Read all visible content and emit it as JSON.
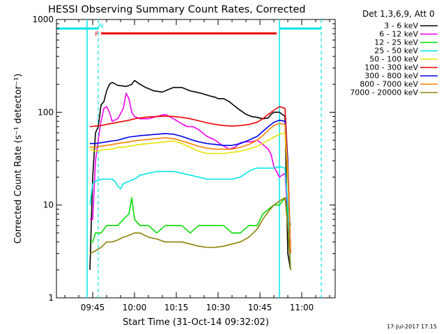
{
  "chart_data": {
    "type": "line",
    "title": "HESSI Observing Summary Count Rates, Corrected",
    "xlabel": "Start Time (31-Oct-14 09:32:02)",
    "ylabel": "Corrected Count Rate (s⁻¹ detector⁻¹)",
    "timestamp": "17-Jul-2017 17:15",
    "y_scale": "log",
    "ylim": [
      1,
      1000
    ],
    "y_ticks": [
      {
        "value": 1,
        "label": "1"
      },
      {
        "value": 10,
        "label": "10"
      },
      {
        "value": 100,
        "label": "100"
      },
      {
        "value": 1000,
        "label": "1000"
      }
    ],
    "xlim_minutes": [
      0,
      100
    ],
    "x_ticks": [
      {
        "minute": 13,
        "label": "09:45"
      },
      {
        "minute": 28,
        "label": "10:00"
      },
      {
        "minute": 43,
        "label": "10:15"
      },
      {
        "minute": 58,
        "label": "10:30"
      },
      {
        "minute": 73,
        "label": "10:45"
      },
      {
        "minute": 88,
        "label": "11:00"
      }
    ],
    "legend": {
      "header": "Det 1,3,6,9, Att 0",
      "placement": "right"
    },
    "flag_bars": [
      {
        "label": "N",
        "color": "#00e5e5",
        "segments": [
          [
            0,
            15
          ],
          [
            80,
            95
          ]
        ]
      },
      {
        "label": "F",
        "color": "#ee0000",
        "segments": [
          [
            16,
            79
          ]
        ]
      }
    ],
    "night_lines": {
      "color": "#00e5e5",
      "solid": [
        11,
        80
      ],
      "dashed": [
        15,
        95
      ]
    },
    "series": [
      {
        "name": "3 - 6 keV",
        "color": "#000000",
        "points": [
          [
            12,
            2
          ],
          [
            13,
            20
          ],
          [
            14,
            60
          ],
          [
            15,
            70
          ],
          [
            16,
            120
          ],
          [
            17,
            130
          ],
          [
            18,
            170
          ],
          [
            19,
            200
          ],
          [
            20,
            210
          ],
          [
            22,
            195
          ],
          [
            25,
            190
          ],
          [
            27,
            200
          ],
          [
            28,
            220
          ],
          [
            30,
            200
          ],
          [
            32,
            185
          ],
          [
            35,
            170
          ],
          [
            38,
            165
          ],
          [
            40,
            175
          ],
          [
            42,
            185
          ],
          [
            45,
            185
          ],
          [
            48,
            170
          ],
          [
            50,
            165
          ],
          [
            52,
            160
          ],
          [
            55,
            150
          ],
          [
            57,
            145
          ],
          [
            58,
            140
          ],
          [
            60,
            140
          ],
          [
            62,
            130
          ],
          [
            65,
            110
          ],
          [
            68,
            95
          ],
          [
            70,
            90
          ],
          [
            72,
            88
          ],
          [
            74,
            85
          ],
          [
            76,
            87
          ],
          [
            77,
            95
          ],
          [
            78,
            100
          ],
          [
            80,
            100
          ],
          [
            82,
            90
          ],
          [
            83,
            3
          ],
          [
            84,
            2
          ]
        ]
      },
      {
        "name": "6 - 12 keV",
        "color": "#ee00ee",
        "points": [
          [
            12,
            7
          ],
          [
            13,
            7
          ],
          [
            14,
            30
          ],
          [
            15,
            50
          ],
          [
            16,
            80
          ],
          [
            17,
            110
          ],
          [
            18,
            115
          ],
          [
            19,
            100
          ],
          [
            20,
            80
          ],
          [
            22,
            85
          ],
          [
            24,
            110
          ],
          [
            25,
            160
          ],
          [
            26,
            140
          ],
          [
            27,
            100
          ],
          [
            28,
            90
          ],
          [
            30,
            85
          ],
          [
            33,
            85
          ],
          [
            36,
            90
          ],
          [
            39,
            95
          ],
          [
            42,
            85
          ],
          [
            45,
            75
          ],
          [
            47,
            70
          ],
          [
            49,
            70
          ],
          [
            51,
            65
          ],
          [
            54,
            55
          ],
          [
            57,
            50
          ],
          [
            59,
            45
          ],
          [
            62,
            40
          ],
          [
            64,
            42
          ],
          [
            66,
            47
          ],
          [
            68,
            48
          ],
          [
            70,
            48
          ],
          [
            72,
            50
          ],
          [
            74,
            45
          ],
          [
            76,
            40
          ],
          [
            77,
            35
          ],
          [
            78,
            26
          ],
          [
            80,
            20
          ],
          [
            82,
            22
          ],
          [
            83,
            8
          ],
          [
            84,
            6
          ]
        ]
      },
      {
        "name": "12 - 25 keV",
        "color": "#00dd00",
        "points": [
          [
            12,
            4
          ],
          [
            13,
            4
          ],
          [
            14,
            5
          ],
          [
            16,
            5
          ],
          [
            18,
            6
          ],
          [
            20,
            6
          ],
          [
            22,
            6
          ],
          [
            24,
            7
          ],
          [
            26,
            8
          ],
          [
            27,
            12
          ],
          [
            28,
            7
          ],
          [
            30,
            6
          ],
          [
            33,
            6
          ],
          [
            36,
            5
          ],
          [
            39,
            6
          ],
          [
            42,
            6
          ],
          [
            45,
            6
          ],
          [
            48,
            5
          ],
          [
            51,
            6
          ],
          [
            54,
            6
          ],
          [
            57,
            6
          ],
          [
            60,
            6
          ],
          [
            63,
            5
          ],
          [
            66,
            5
          ],
          [
            69,
            6
          ],
          [
            72,
            6
          ],
          [
            74,
            8
          ],
          [
            76,
            9
          ],
          [
            78,
            10
          ],
          [
            80,
            10
          ],
          [
            82,
            12
          ],
          [
            83,
            8
          ],
          [
            84,
            6
          ]
        ]
      },
      {
        "name": "25 - 50 keV",
        "color": "#00e5e5",
        "points": [
          [
            12,
            10
          ],
          [
            13,
            17
          ],
          [
            14,
            18
          ],
          [
            16,
            19
          ],
          [
            18,
            19
          ],
          [
            20,
            19
          ],
          [
            21,
            18
          ],
          [
            22,
            16
          ],
          [
            23,
            15
          ],
          [
            24,
            17
          ],
          [
            26,
            18
          ],
          [
            28,
            19
          ],
          [
            30,
            21
          ],
          [
            33,
            22
          ],
          [
            36,
            23
          ],
          [
            39,
            23
          ],
          [
            42,
            23
          ],
          [
            45,
            22
          ],
          [
            48,
            21
          ],
          [
            51,
            20
          ],
          [
            54,
            19
          ],
          [
            57,
            19
          ],
          [
            60,
            19
          ],
          [
            63,
            19
          ],
          [
            66,
            20
          ],
          [
            68,
            22
          ],
          [
            70,
            24
          ],
          [
            72,
            25
          ],
          [
            74,
            25
          ],
          [
            76,
            25
          ],
          [
            78,
            25
          ],
          [
            80,
            26
          ],
          [
            82,
            25
          ],
          [
            83,
            10
          ],
          [
            84,
            2
          ]
        ]
      },
      {
        "name": "50 - 100 keV",
        "color": "#e5e500",
        "points": [
          [
            12,
            40
          ],
          [
            14,
            38
          ],
          [
            16,
            39
          ],
          [
            18,
            40
          ],
          [
            20,
            40
          ],
          [
            22,
            42
          ],
          [
            24,
            42
          ],
          [
            26,
            43
          ],
          [
            28,
            44
          ],
          [
            30,
            45
          ],
          [
            33,
            46
          ],
          [
            36,
            47
          ],
          [
            39,
            48
          ],
          [
            42,
            49
          ],
          [
            45,
            46
          ],
          [
            48,
            42
          ],
          [
            51,
            38
          ],
          [
            54,
            36
          ],
          [
            57,
            36
          ],
          [
            60,
            36
          ],
          [
            63,
            37
          ],
          [
            66,
            38
          ],
          [
            69,
            40
          ],
          [
            72,
            43
          ],
          [
            74,
            46
          ],
          [
            76,
            50
          ],
          [
            78,
            54
          ],
          [
            80,
            58
          ],
          [
            82,
            60
          ],
          [
            83,
            20
          ],
          [
            84,
            3
          ]
        ]
      },
      {
        "name": "100 - 300 keV",
        "color": "#ee0000",
        "points": [
          [
            12,
            70
          ],
          [
            14,
            71
          ],
          [
            16,
            72
          ],
          [
            18,
            74
          ],
          [
            20,
            76
          ],
          [
            22,
            78
          ],
          [
            24,
            80
          ],
          [
            26,
            82
          ],
          [
            28,
            85
          ],
          [
            30,
            87
          ],
          [
            33,
            89
          ],
          [
            36,
            90
          ],
          [
            39,
            91
          ],
          [
            42,
            90
          ],
          [
            45,
            88
          ],
          [
            48,
            85
          ],
          [
            51,
            81
          ],
          [
            54,
            77
          ],
          [
            57,
            74
          ],
          [
            60,
            72
          ],
          [
            63,
            71
          ],
          [
            66,
            72
          ],
          [
            69,
            74
          ],
          [
            72,
            78
          ],
          [
            74,
            85
          ],
          [
            76,
            95
          ],
          [
            78,
            105
          ],
          [
            80,
            115
          ],
          [
            82,
            110
          ],
          [
            83,
            30
          ],
          [
            84,
            3
          ]
        ]
      },
      {
        "name": "300 - 800 keV",
        "color": "#0000ee",
        "points": [
          [
            12,
            46
          ],
          [
            14,
            46
          ],
          [
            16,
            47
          ],
          [
            18,
            48
          ],
          [
            20,
            49
          ],
          [
            22,
            50
          ],
          [
            24,
            52
          ],
          [
            26,
            54
          ],
          [
            28,
            55
          ],
          [
            30,
            56
          ],
          [
            33,
            57
          ],
          [
            36,
            58
          ],
          [
            39,
            59
          ],
          [
            42,
            58
          ],
          [
            45,
            55
          ],
          [
            48,
            51
          ],
          [
            51,
            48
          ],
          [
            54,
            46
          ],
          [
            57,
            45
          ],
          [
            60,
            44
          ],
          [
            63,
            44
          ],
          [
            66,
            46
          ],
          [
            69,
            50
          ],
          [
            72,
            55
          ],
          [
            74,
            62
          ],
          [
            76,
            70
          ],
          [
            78,
            78
          ],
          [
            80,
            82
          ],
          [
            82,
            80
          ],
          [
            83,
            30
          ],
          [
            84,
            3
          ]
        ]
      },
      {
        "name": "800 - 7000 keV",
        "color": "#ff8000",
        "points": [
          [
            12,
            42
          ],
          [
            14,
            42
          ],
          [
            16,
            43
          ],
          [
            18,
            44
          ],
          [
            20,
            45
          ],
          [
            22,
            46
          ],
          [
            24,
            47
          ],
          [
            26,
            48
          ],
          [
            28,
            49
          ],
          [
            30,
            50
          ],
          [
            33,
            51
          ],
          [
            36,
            52
          ],
          [
            39,
            53
          ],
          [
            42,
            52
          ],
          [
            45,
            49
          ],
          [
            48,
            46
          ],
          [
            51,
            43
          ],
          [
            54,
            41
          ],
          [
            57,
            40
          ],
          [
            60,
            40
          ],
          [
            63,
            40
          ],
          [
            66,
            42
          ],
          [
            69,
            45
          ],
          [
            72,
            50
          ],
          [
            74,
            56
          ],
          [
            76,
            64
          ],
          [
            78,
            72
          ],
          [
            80,
            76
          ],
          [
            82,
            74
          ],
          [
            83,
            25
          ],
          [
            84,
            3
          ]
        ]
      },
      {
        "name": "7000 - 20000 keV",
        "color": "#8b8000",
        "points": [
          [
            12,
            3
          ],
          [
            14,
            3.2
          ],
          [
            16,
            3.5
          ],
          [
            18,
            4
          ],
          [
            20,
            4
          ],
          [
            22,
            4.2
          ],
          [
            24,
            4.5
          ],
          [
            26,
            4.7
          ],
          [
            28,
            5
          ],
          [
            30,
            5
          ],
          [
            33,
            4.5
          ],
          [
            36,
            4.3
          ],
          [
            39,
            4
          ],
          [
            42,
            4
          ],
          [
            45,
            4
          ],
          [
            48,
            3.8
          ],
          [
            51,
            3.6
          ],
          [
            54,
            3.5
          ],
          [
            57,
            3.5
          ],
          [
            60,
            3.6
          ],
          [
            63,
            3.8
          ],
          [
            66,
            4
          ],
          [
            69,
            4.5
          ],
          [
            72,
            5.5
          ],
          [
            74,
            7
          ],
          [
            76,
            8.5
          ],
          [
            78,
            10
          ],
          [
            80,
            11
          ],
          [
            82,
            12
          ],
          [
            83,
            6
          ],
          [
            84,
            2
          ]
        ]
      }
    ]
  }
}
